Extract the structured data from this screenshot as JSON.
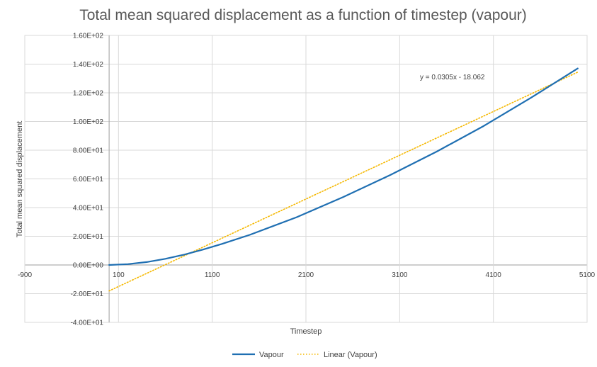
{
  "chart_data": {
    "type": "line",
    "title": "Total mean squared displacement as a function of timestep (vapour)",
    "xlabel": "Timestep",
    "ylabel": "Total mean squared displacement",
    "xlim": [
      -900,
      5100
    ],
    "ylim": [
      -40,
      160
    ],
    "x_ticks": [
      -900,
      100,
      1100,
      2100,
      3100,
      4100,
      5100
    ],
    "x_tick_labels": [
      "-900",
      "100",
      "1100",
      "2100",
      "3100",
      "4100",
      "5100"
    ],
    "y_ticks": [
      -40,
      -20,
      0,
      20,
      40,
      60,
      80,
      100,
      120,
      140,
      160
    ],
    "y_tick_labels": [
      "-4.00E+01",
      "-2.00E+01",
      "0.00E+00",
      "2.00E+01",
      "4.00E+01",
      "6.00E+01",
      "8.00E+01",
      "1.00E+02",
      "1.20E+02",
      "1.40E+02",
      "1.60E+02"
    ],
    "grid": true,
    "legend_position": "bottom",
    "series": [
      {
        "name": "Vapour",
        "color": "#1f6fb2",
        "style": "solid",
        "x": [
          0,
          200,
          400,
          600,
          800,
          1000,
          1200,
          1500,
          2000,
          2500,
          3000,
          3500,
          4000,
          4500,
          5000
        ],
        "y": [
          0,
          0.6,
          2.0,
          4.3,
          7.2,
          10.7,
          14.6,
          21.0,
          33.3,
          47.4,
          62.7,
          79.2,
          97.0,
          116.5,
          137.0
        ]
      },
      {
        "name": "Linear (Vapour)",
        "color": "#f5b800",
        "style": "dotted",
        "x": [
          0,
          5000
        ],
        "y": [
          -18.062,
          134.438
        ]
      }
    ],
    "trendline_equation": "y = 0.0305x - 18.062"
  }
}
